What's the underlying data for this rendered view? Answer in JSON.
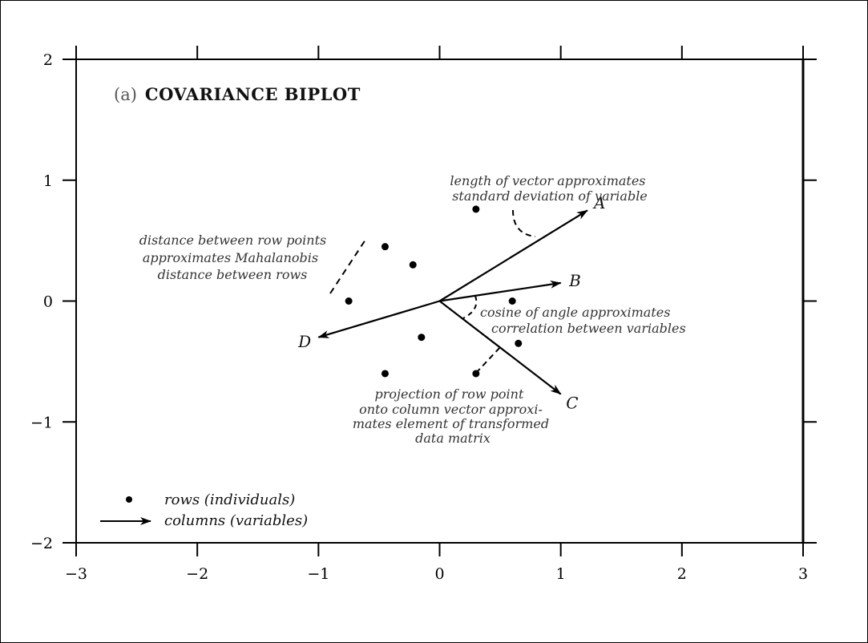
{
  "chart_data": {
    "type": "scatter",
    "title_prefix": "(a)",
    "title": "COVARIANCE BIPLOT",
    "xlabel": "",
    "ylabel": "",
    "xlim": [
      -3,
      3
    ],
    "ylim": [
      -2,
      2
    ],
    "x_ticks": [
      -3,
      -2,
      -1,
      0,
      1,
      2,
      3
    ],
    "y_ticks": [
      -2,
      -1,
      0,
      1,
      2
    ],
    "x_tick_labels": [
      "−3",
      "−2",
      "−1",
      "0",
      "1",
      "2",
      "3"
    ],
    "y_tick_labels": [
      "−2",
      "−1",
      "0",
      "1",
      "2"
    ],
    "grid": false,
    "rows": [
      {
        "x": 0.3,
        "y": 0.76
      },
      {
        "x": -0.45,
        "y": 0.45
      },
      {
        "x": -0.22,
        "y": 0.3
      },
      {
        "x": -0.75,
        "y": 0.0
      },
      {
        "x": 0.6,
        "y": 0.0
      },
      {
        "x": -0.15,
        "y": -0.3
      },
      {
        "x": 0.65,
        "y": -0.35
      },
      {
        "x": -0.45,
        "y": -0.6
      },
      {
        "x": 0.3,
        "y": -0.6
      }
    ],
    "vectors": [
      {
        "label": "A",
        "x": 1.22,
        "y": 0.75
      },
      {
        "label": "B",
        "x": 1.0,
        "y": 0.15
      },
      {
        "label": "C",
        "x": 1.0,
        "y": -0.77
      },
      {
        "label": "D",
        "x": -1.0,
        "y": -0.3
      }
    ],
    "annotations": [
      {
        "id": "length",
        "lines": [
          "length of vector approximates",
          "standard deviation of variable"
        ]
      },
      {
        "id": "distance",
        "lines": [
          "distance between row points",
          "approximates Mahalanobis",
          "distance between rows"
        ]
      },
      {
        "id": "cosine",
        "lines": [
          "cosine of angle approximates",
          "correlation between variables"
        ]
      },
      {
        "id": "projection",
        "lines": [
          "projection of row point",
          "onto column vector approxi-",
          "mates element of transformed",
          "data matrix"
        ]
      }
    ],
    "legend": {
      "placement": "bottom-left",
      "rows_label": "rows (individuals)",
      "columns_label": "columns (variables)"
    }
  }
}
